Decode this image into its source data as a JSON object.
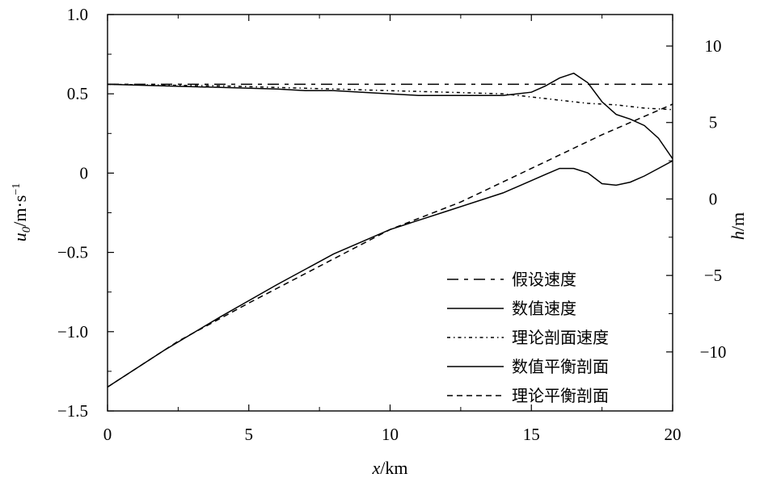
{
  "chart_data": {
    "type": "line",
    "xlabel": {
      "var": "x",
      "unit": "/km"
    },
    "ylabel_left": {
      "var": "u",
      "sub": "0",
      "unit": "/m·s",
      "sup": "−1"
    },
    "ylabel_right": {
      "var": "h",
      "unit": "/m"
    },
    "xlim": [
      0,
      20
    ],
    "ylim_left": [
      -1.5,
      1.0
    ],
    "ylim_right": [
      -13.86,
      12.06
    ],
    "x_ticks": [
      0,
      5,
      10,
      15,
      20
    ],
    "x_tick_labels": [
      "0",
      "5",
      "10",
      "15",
      "20"
    ],
    "y_left_ticks": [
      1.0,
      0.5,
      0,
      -0.5,
      -1.0,
      -1.5
    ],
    "y_left_tick_labels": [
      "1.0",
      "0.5",
      "0",
      "−0.5",
      "−1.0",
      "−1.5"
    ],
    "y_right_ticks": [
      10,
      5,
      0,
      -5,
      -10
    ],
    "y_right_tick_labels": [
      "10",
      "5",
      "0",
      "−5",
      "−10"
    ],
    "grid": false,
    "legend_position": "lower-right",
    "series": [
      {
        "name": "假设速度",
        "axis": "left",
        "style": "longdash",
        "x": [
          0,
          20
        ],
        "y": [
          0.56,
          0.56
        ]
      },
      {
        "name": "数值速度",
        "axis": "left",
        "style": "solid",
        "x": [
          0,
          2,
          4,
          6,
          7,
          8,
          9,
          10,
          11,
          12,
          13,
          14,
          15,
          15.5,
          16,
          16.5,
          17,
          17.5,
          18,
          18.5,
          19,
          19.5,
          20
        ],
        "y": [
          0.56,
          0.55,
          0.54,
          0.53,
          0.52,
          0.52,
          0.51,
          0.5,
          0.49,
          0.49,
          0.49,
          0.49,
          0.51,
          0.55,
          0.6,
          0.63,
          0.57,
          0.45,
          0.37,
          0.34,
          0.3,
          0.22,
          0.09
        ]
      },
      {
        "name": "理论剖面速度",
        "axis": "left",
        "style": "dotted",
        "x": [
          0,
          2,
          4,
          6,
          8,
          10,
          12,
          14,
          15,
          16,
          17,
          18,
          19,
          20
        ],
        "y": [
          0.56,
          0.555,
          0.55,
          0.54,
          0.53,
          0.52,
          0.51,
          0.5,
          0.48,
          0.46,
          0.44,
          0.43,
          0.41,
          0.4
        ]
      },
      {
        "name": "数值平衡剖面",
        "axis": "right",
        "style": "solid",
        "x": [
          0,
          2,
          4,
          6,
          8,
          10,
          12,
          14,
          15,
          15.5,
          16,
          16.5,
          17,
          17.5,
          18,
          18.5,
          19,
          19.5,
          20
        ],
        "y": [
          -12.3,
          -9.9,
          -7.7,
          -5.6,
          -3.6,
          -2.0,
          -0.8,
          0.4,
          1.2,
          1.6,
          2.0,
          2.0,
          1.7,
          1.0,
          0.9,
          1.1,
          1.5,
          2.0,
          2.5
        ]
      },
      {
        "name": "理论平衡剖面",
        "axis": "right",
        "style": "dashed",
        "x": [
          0,
          2.5,
          5,
          7.5,
          10,
          12.5,
          15,
          17.5,
          20
        ],
        "y": [
          -12.3,
          -9.3,
          -6.8,
          -4.4,
          -2.0,
          -0.2,
          2.0,
          4.2,
          6.2
        ]
      }
    ]
  }
}
